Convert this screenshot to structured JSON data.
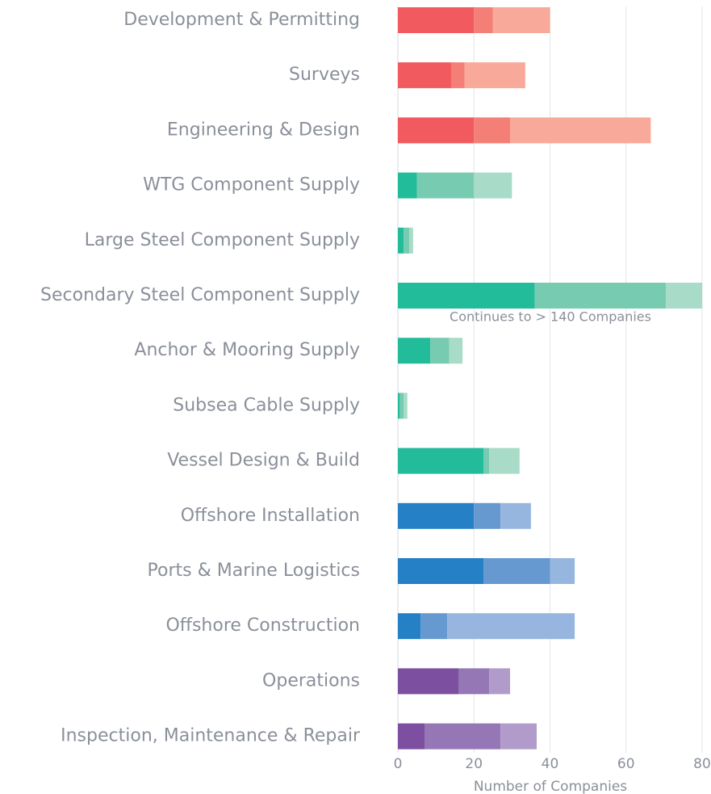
{
  "chart_data": {
    "type": "stacked_barh",
    "x_label": "Number of Companies",
    "annotation": "Continues to > 140 Companies",
    "categories": [
      "Development & Permitting",
      "Surveys",
      "Engineering & Design",
      "WTG Component Supply",
      "Large Steel Component Supply",
      "Secondary Steel Component Supply",
      "Anchor & Mooring Supply",
      "Subsea Cable Supply",
      "Vessel Design & Build",
      "Offshore Installation",
      "Ports & Marine Logistics",
      "Offshore Construction",
      "Operations",
      "Inspection, Maintenance & Repair"
    ],
    "series": [
      {
        "values": [
          20,
          14,
          20,
          5,
          1.5,
          36,
          8.5,
          0.5,
          22.5,
          20,
          22.5,
          6,
          16,
          7
        ],
        "colors": [
          "#f15a5e",
          "#f15a5e",
          "#f15a5e",
          "#23bc9b",
          "#23bc9b",
          "#23bc9b",
          "#23bc9b",
          "#23bc9b",
          "#23bc9b",
          "#2580c5",
          "#2580c5",
          "#2580c5",
          "#7c4fa0",
          "#7c4fa0"
        ]
      },
      {
        "values": [
          5,
          3.5,
          9.5,
          15,
          1.5,
          34.5,
          5,
          1,
          1.5,
          7,
          17.5,
          7,
          8,
          20
        ],
        "colors": [
          "#f47f76",
          "#f47f76",
          "#f47f76",
          "#77cbb1",
          "#77cbb1",
          "#77cbb1",
          "#77cbb1",
          "#77cbb1",
          "#77cbb1",
          "#6699d0",
          "#6699d0",
          "#6699d0",
          "#9477b4",
          "#9477b4"
        ]
      },
      {
        "values": [
          15,
          16,
          37,
          10,
          1,
          9.5,
          3.5,
          1,
          8,
          8,
          6.5,
          33.5,
          5.5,
          9.5
        ],
        "colors": [
          "#f9a99a",
          "#f9a99a",
          "#f9a99a",
          "#a8dbc8",
          "#a8dbc8",
          "#a8dbc8",
          "#a8dbc8",
          "#a8dbc8",
          "#a8dbc8",
          "#97b6df",
          "#97b6df",
          "#97b6df",
          "#b19bca",
          "#b19bca"
        ]
      }
    ],
    "xlim": [
      0,
      80
    ],
    "xticks": [
      0,
      20,
      40,
      60,
      80
    ],
    "grid": true
  }
}
